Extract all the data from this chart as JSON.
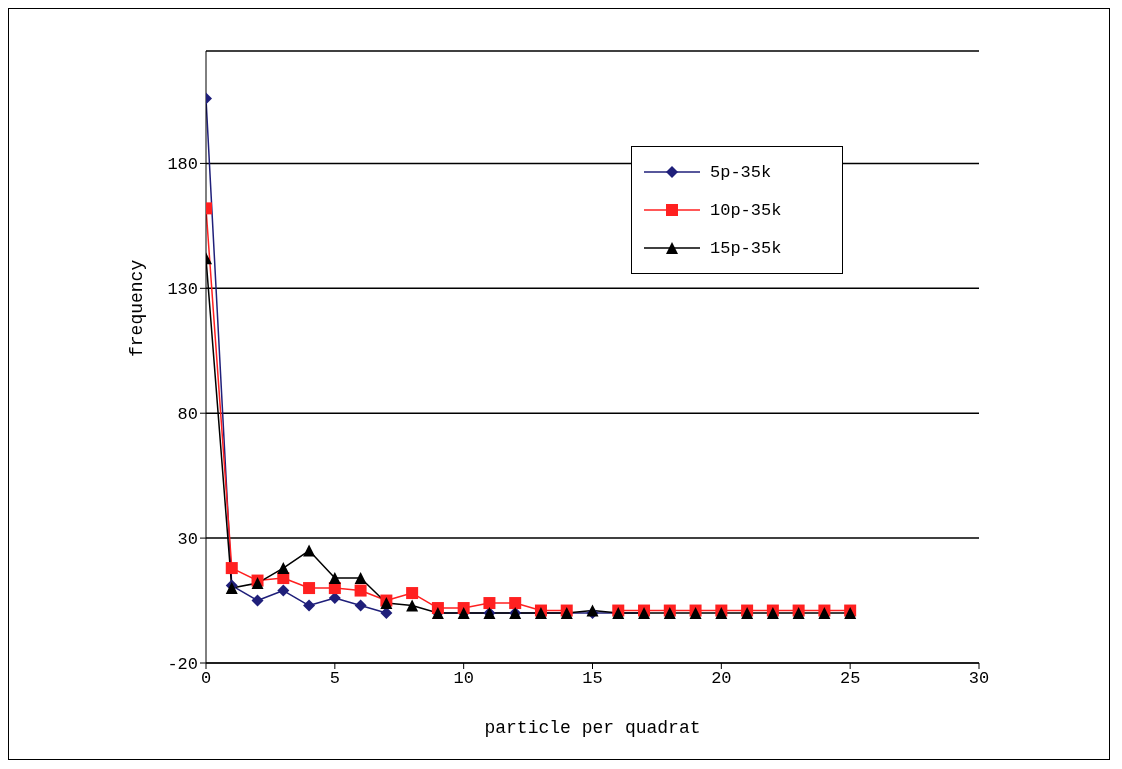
{
  "chart_data": {
    "type": "line",
    "xlabel": "particle per quadrat",
    "ylabel": "frequency",
    "x": [
      0,
      1,
      2,
      3,
      4,
      5,
      6,
      7,
      8,
      9,
      10,
      11,
      12,
      13,
      14,
      15,
      16,
      17,
      18,
      19,
      20,
      21,
      22,
      23,
      24,
      25
    ],
    "series": [
      {
        "name": "5p-35k",
        "color": "#1f1f7a",
        "marker": "diamond",
        "values": [
          206,
          11,
          5,
          9,
          3,
          6,
          3,
          0,
          null,
          0,
          0,
          0,
          0,
          0,
          0,
          0,
          0,
          0,
          null,
          null,
          null,
          null,
          null,
          null,
          null,
          null
        ]
      },
      {
        "name": "10p-35k",
        "color": "#ff2020",
        "marker": "square",
        "values": [
          162,
          18,
          13,
          14,
          10,
          10,
          9,
          5,
          8,
          2,
          2,
          4,
          4,
          1,
          1,
          null,
          1,
          1,
          1,
          1,
          1,
          1,
          1,
          1,
          1,
          1
        ]
      },
      {
        "name": "15p-35k",
        "color": "#000000",
        "marker": "triangle",
        "values": [
          142,
          10,
          12,
          18,
          25,
          14,
          14,
          4,
          3,
          0,
          0,
          0,
          0,
          0,
          0,
          1,
          0,
          0,
          0,
          0,
          0,
          0,
          0,
          0,
          0,
          0
        ]
      }
    ],
    "xlim": [
      0,
      30
    ],
    "xticks": [
      0,
      5,
      10,
      15,
      20,
      25,
      30
    ],
    "ylim": [
      -20,
      225
    ],
    "yticks": [
      -20,
      30,
      80,
      130,
      180
    ],
    "grid": "y",
    "legend": "top right"
  }
}
